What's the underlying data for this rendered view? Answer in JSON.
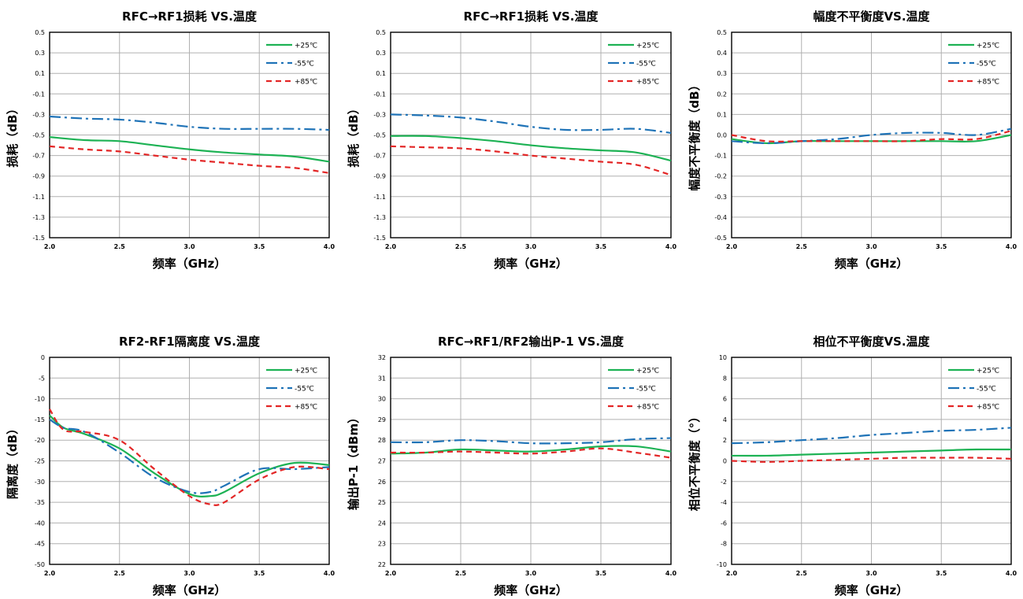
{
  "colors": {
    "p25": "#1db254",
    "m55": "#1f73b7",
    "p85": "#e32626",
    "grid": "#b0b0b0",
    "axis": "#000000"
  },
  "chart_data": [
    {
      "type": "line",
      "title": "RFC→RF1损耗 VS.温度",
      "xlabel": "频率（GHz）",
      "ylabel": "损耗（dB）",
      "xlim": [
        2.0,
        4.0
      ],
      "ylim": [
        -1.5,
        0.5
      ],
      "xticks": [
        2.0,
        2.5,
        3.0,
        3.5,
        4.0
      ],
      "xtick_labels": [
        "2.0",
        "2.5",
        "3.0",
        "3.5",
        "4.0"
      ],
      "yticks": [
        0.5,
        0.3,
        0.1,
        -0.1,
        -0.3,
        -0.5,
        -0.7,
        -0.9,
        -1.1,
        -1.3,
        -1.5
      ],
      "ytick_labels": [
        "0.5",
        "0.3",
        "0.1",
        "-0.1",
        "-0.3",
        "-0.5",
        "-0.7",
        "-0.9",
        "-1.1",
        "-1.3",
        "-1.5"
      ],
      "grid": true,
      "legend": "top-right",
      "x": [
        2.0,
        2.25,
        2.5,
        2.75,
        3.0,
        3.25,
        3.5,
        3.75,
        4.0
      ],
      "series": [
        {
          "name": "+25℃",
          "color_key": "p25",
          "style": "solid",
          "values": [
            -0.52,
            -0.55,
            -0.56,
            -0.6,
            -0.64,
            -0.67,
            -0.69,
            -0.71,
            -0.76
          ]
        },
        {
          "name": "-55℃",
          "color_key": "m55",
          "style": "dashdot",
          "values": [
            -0.32,
            -0.34,
            -0.35,
            -0.38,
            -0.42,
            -0.44,
            -0.44,
            -0.44,
            -0.45
          ]
        },
        {
          "name": "+85℃",
          "color_key": "p85",
          "style": "dashed",
          "values": [
            -0.61,
            -0.64,
            -0.66,
            -0.7,
            -0.74,
            -0.77,
            -0.8,
            -0.82,
            -0.87
          ]
        }
      ]
    },
    {
      "type": "line",
      "title": "RFC→RF1损耗 VS.温度",
      "xlabel": "频率（GHz）",
      "ylabel": "损耗（dB）",
      "xlim": [
        2.0,
        4.0
      ],
      "ylim": [
        -1.5,
        0.5
      ],
      "xticks": [
        2.0,
        2.5,
        3.0,
        3.5,
        4.0
      ],
      "xtick_labels": [
        "2.0",
        "2.5",
        "3.0",
        "3.5",
        "4.0"
      ],
      "yticks": [
        0.5,
        0.3,
        0.1,
        -0.1,
        -0.3,
        -0.5,
        -0.7,
        -0.9,
        -1.1,
        -1.3,
        -1.5
      ],
      "ytick_labels": [
        "0.5",
        "0.3",
        "0.1",
        "-0.1",
        "-0.3",
        "-0.5",
        "-0.7",
        "-0.9",
        "-1.1",
        "-1.3",
        "-1.5"
      ],
      "grid": true,
      "legend": "top-right",
      "x": [
        2.0,
        2.25,
        2.5,
        2.75,
        3.0,
        3.25,
        3.5,
        3.75,
        4.0
      ],
      "series": [
        {
          "name": "+25℃",
          "color_key": "p25",
          "style": "solid",
          "values": [
            -0.51,
            -0.51,
            -0.53,
            -0.56,
            -0.6,
            -0.63,
            -0.65,
            -0.67,
            -0.75
          ]
        },
        {
          "name": "-55℃",
          "color_key": "m55",
          "style": "dashdot",
          "values": [
            -0.3,
            -0.31,
            -0.33,
            -0.37,
            -0.42,
            -0.45,
            -0.45,
            -0.44,
            -0.48
          ]
        },
        {
          "name": "+85℃",
          "color_key": "p85",
          "style": "dashed",
          "values": [
            -0.61,
            -0.62,
            -0.63,
            -0.66,
            -0.7,
            -0.73,
            -0.76,
            -0.79,
            -0.89
          ]
        }
      ]
    },
    {
      "type": "line",
      "title": "幅度不平衡度VS.温度",
      "xlabel": "频率（GHz）",
      "ylabel": "幅度不平衡度（dB）",
      "xlim": [
        2.0,
        4.0
      ],
      "ylim": [
        -0.5,
        0.5
      ],
      "xticks": [
        2.0,
        2.5,
        3.0,
        3.5,
        4.0
      ],
      "xtick_labels": [
        "2.0",
        "2.5",
        "3.0",
        "3.5",
        "4.0"
      ],
      "yticks": [
        0.5,
        0.4,
        0.3,
        0.2,
        0.1,
        0.0,
        -0.1,
        -0.2,
        -0.3,
        -0.4,
        -0.5
      ],
      "ytick_labels": [
        "0.5",
        "0.4",
        "0.3",
        "0.2",
        "0.1",
        "0.0",
        "-0.1",
        "-0.2",
        "-0.3",
        "-0.4",
        "-0.5"
      ],
      "grid": true,
      "legend": "top-right",
      "x": [
        2.0,
        2.25,
        2.5,
        2.75,
        3.0,
        3.25,
        3.5,
        3.75,
        4.0
      ],
      "series": [
        {
          "name": "+25℃",
          "color_key": "p25",
          "style": "solid",
          "values": [
            -0.02,
            -0.04,
            -0.03,
            -0.03,
            -0.03,
            -0.03,
            -0.03,
            -0.03,
            0.0
          ]
        },
        {
          "name": "-55℃",
          "color_key": "m55",
          "style": "dashdot",
          "values": [
            -0.03,
            -0.04,
            -0.03,
            -0.02,
            0.0,
            0.01,
            0.01,
            0.0,
            0.03
          ]
        },
        {
          "name": "+85℃",
          "color_key": "p85",
          "style": "dashed",
          "values": [
            0.0,
            -0.03,
            -0.03,
            -0.03,
            -0.03,
            -0.03,
            -0.02,
            -0.02,
            0.02
          ]
        }
      ]
    },
    {
      "type": "line",
      "title": "RF2-RF1隔离度 VS.温度",
      "xlabel": "频率（GHz）",
      "ylabel": "隔离度（dB）",
      "xlim": [
        2.0,
        4.0
      ],
      "ylim": [
        -50,
        0
      ],
      "xticks": [
        2.0,
        2.5,
        3.0,
        3.5,
        4.0
      ],
      "xtick_labels": [
        "2.0",
        "2.5",
        "3.0",
        "3.5",
        "4.0"
      ],
      "yticks": [
        0,
        -5,
        -10,
        -15,
        -20,
        -25,
        -30,
        -35,
        -40,
        -45,
        -50
      ],
      "ytick_labels": [
        "0",
        "-5",
        "-10",
        "-15",
        "-20",
        "-25",
        "-30",
        "-35",
        "-40",
        "-45",
        "-50"
      ],
      "grid": true,
      "legend": "top-right",
      "x": [
        2.0,
        2.1,
        2.25,
        2.5,
        2.75,
        3.0,
        3.15,
        3.25,
        3.5,
        3.75,
        4.0
      ],
      "series": [
        {
          "name": "+25℃",
          "color_key": "p25",
          "style": "solid",
          "values": [
            -14.0,
            -17.0,
            -18.5,
            -22.0,
            -28.0,
            -33.0,
            -33.5,
            -32.5,
            -28.0,
            -25.5,
            -26.0
          ]
        },
        {
          "name": "-55℃",
          "color_key": "m55",
          "style": "dashdot",
          "values": [
            -15.0,
            -17.0,
            -18.0,
            -23.0,
            -29.0,
            -32.5,
            -32.5,
            -31.0,
            -27.0,
            -27.0,
            -26.5
          ]
        },
        {
          "name": "+85℃",
          "color_key": "p85",
          "style": "dashed",
          "values": [
            -12.5,
            -17.5,
            -18.0,
            -20.0,
            -27.0,
            -33.5,
            -35.5,
            -35.0,
            -29.5,
            -26.5,
            -27.0
          ]
        }
      ]
    },
    {
      "type": "line",
      "title": "RFC→RF1/RF2输出P-1 VS.温度",
      "xlabel": "频率（GHz）",
      "ylabel": "输出P-1（dBm）",
      "xlim": [
        2.0,
        4.0
      ],
      "ylim": [
        22,
        32
      ],
      "xticks": [
        2.0,
        2.5,
        3.0,
        3.5,
        4.0
      ],
      "xtick_labels": [
        "2.0",
        "2.5",
        "3.0",
        "3.5",
        "4.0"
      ],
      "yticks": [
        32,
        31,
        30,
        29,
        28,
        27,
        26,
        25,
        24,
        23,
        22
      ],
      "ytick_labels": [
        "32",
        "31",
        "30",
        "29",
        "28",
        "27",
        "26",
        "25",
        "24",
        "23",
        "22"
      ],
      "grid": true,
      "legend": "top-right",
      "x": [
        2.0,
        2.25,
        2.5,
        2.75,
        3.0,
        3.25,
        3.5,
        3.75,
        4.0
      ],
      "series": [
        {
          "name": "+25℃",
          "color_key": "p25",
          "style": "solid",
          "values": [
            27.35,
            27.4,
            27.55,
            27.5,
            27.45,
            27.55,
            27.7,
            27.7,
            27.45
          ]
        },
        {
          "name": "-55℃",
          "color_key": "m55",
          "style": "dashdot",
          "values": [
            27.9,
            27.9,
            28.0,
            27.95,
            27.85,
            27.85,
            27.9,
            28.05,
            28.1
          ]
        },
        {
          "name": "+85℃",
          "color_key": "p85",
          "style": "dashed",
          "values": [
            27.4,
            27.4,
            27.45,
            27.4,
            27.35,
            27.45,
            27.6,
            27.4,
            27.15
          ]
        }
      ]
    },
    {
      "type": "line",
      "title": "相位不平衡度VS.温度",
      "xlabel": "频率（GHz）",
      "ylabel": "相位不平衡度（°）",
      "xlim": [
        2.0,
        4.0
      ],
      "ylim": [
        -10,
        10
      ],
      "xticks": [
        2.0,
        2.5,
        3.0,
        3.5,
        4.0
      ],
      "xtick_labels": [
        "2.0",
        "2.5",
        "3.0",
        "3.5",
        "4.0"
      ],
      "yticks": [
        10,
        8,
        6,
        4,
        2,
        0,
        -2,
        -4,
        -6,
        -8,
        -10
      ],
      "ytick_labels": [
        "10",
        "8",
        "6",
        "4",
        "2",
        "0",
        "-2",
        "-4",
        "-6",
        "-8",
        "-10"
      ],
      "grid": true,
      "legend": "top-right",
      "x": [
        2.0,
        2.25,
        2.5,
        2.75,
        3.0,
        3.25,
        3.5,
        3.75,
        4.0
      ],
      "series": [
        {
          "name": "+25℃",
          "color_key": "p25",
          "style": "solid",
          "values": [
            0.5,
            0.5,
            0.6,
            0.7,
            0.8,
            0.9,
            1.0,
            1.1,
            1.1
          ]
        },
        {
          "name": "-55℃",
          "color_key": "m55",
          "style": "dashdot",
          "values": [
            1.7,
            1.8,
            2.0,
            2.2,
            2.5,
            2.7,
            2.9,
            3.0,
            3.2
          ]
        },
        {
          "name": "+85℃",
          "color_key": "p85",
          "style": "dashed",
          "values": [
            0.0,
            -0.1,
            0.0,
            0.1,
            0.2,
            0.3,
            0.3,
            0.3,
            0.2
          ]
        }
      ]
    }
  ]
}
